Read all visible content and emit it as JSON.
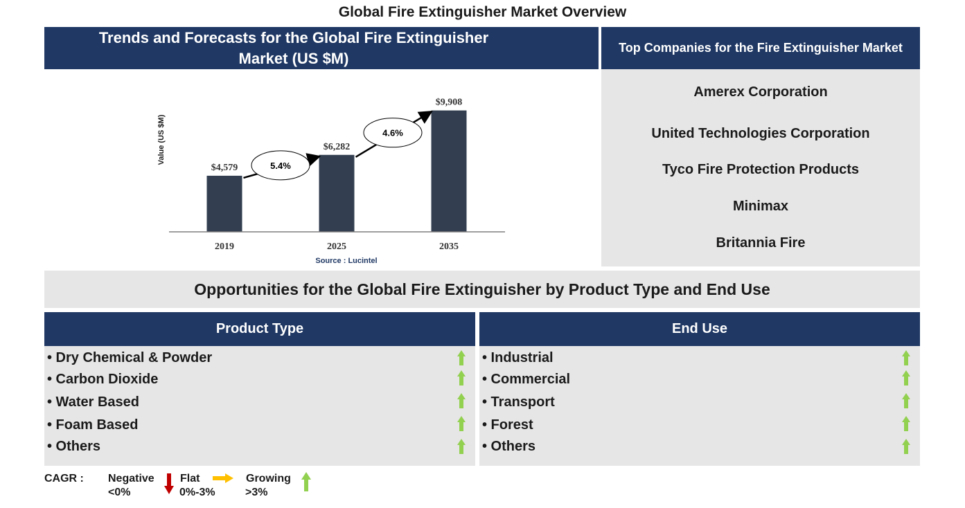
{
  "title": "Global Fire Extinguisher Market Overview",
  "chart_panel": {
    "header_line1": "Trends and Forecasts for the Global Fire Extinguisher",
    "header_line2": "Market (US $M)",
    "source": "Source : Lucintel"
  },
  "chart_data": {
    "type": "bar",
    "title": "Trends and Forecasts for the Global Fire Extinguisher Market (US $M)",
    "ylabel": "Value (US $M)",
    "xlabel": "",
    "categories": [
      "2019",
      "2025",
      "2035"
    ],
    "values": [
      4579,
      6282,
      9908
    ],
    "value_labels": [
      "$4,579",
      "$6,282",
      "$9,908"
    ],
    "ylim": [
      0,
      10000
    ],
    "grid": false,
    "bar_color": "#333f50",
    "cagr_annotations": [
      {
        "from": "2019",
        "to": "2025",
        "label": "5.4%"
      },
      {
        "from": "2025",
        "to": "2035",
        "label": "4.6%"
      }
    ]
  },
  "companies": {
    "header": "Top Companies for the Fire Extinguisher Market",
    "items": [
      "Amerex Corporation",
      "United Technologies Corporation",
      "Tyco Fire Protection Products",
      "Minimax",
      "Britannia Fire"
    ]
  },
  "opportunities": {
    "title": "Opportunities for the Global Fire Extinguisher by Product Type and End Use",
    "product_type": {
      "header": "Product Type",
      "items": [
        {
          "label": "• Dry Chemical & Powder",
          "trend": "growing"
        },
        {
          "label": "• Carbon Dioxide",
          "trend": "growing"
        },
        {
          "label": "• Water Based",
          "trend": "growing"
        },
        {
          "label": "• Foam Based",
          "trend": "growing"
        },
        {
          "label": "• Others",
          "trend": "growing"
        }
      ]
    },
    "end_use": {
      "header": "End Use",
      "items": [
        {
          "label": "• Industrial",
          "trend": "growing"
        },
        {
          "label": "• Commercial",
          "trend": "growing"
        },
        {
          "label": "• Transport",
          "trend": "growing"
        },
        {
          "label": "• Forest",
          "trend": "growing"
        },
        {
          "label": "• Others",
          "trend": "growing"
        }
      ]
    }
  },
  "legend": {
    "cagr_label": "CAGR :",
    "negative_label": "Negative",
    "negative_range": "<0%",
    "flat_label": "Flat",
    "flat_range": "0%-3%",
    "growing_label": "Growing",
    "growing_range": ">3%",
    "negative_color": "#c00000",
    "flat_color": "#ffc000",
    "growing_color": "#92d050"
  },
  "colors": {
    "header_bg": "#1f3864",
    "panel_bg": "#e7e6e6"
  }
}
